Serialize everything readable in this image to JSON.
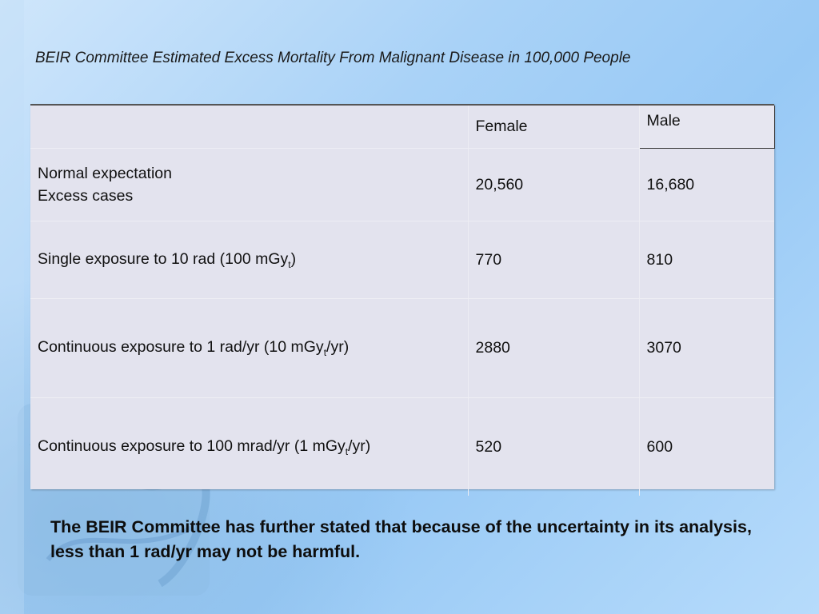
{
  "title": "BEIR Committee Estimated Excess Mortality From Malignant Disease in 100,000 People",
  "table": {
    "headers": {
      "blank": "",
      "female": "Female",
      "male": "Male"
    },
    "rows": [
      {
        "label_line1": "Normal expectation",
        "label_line2": "Excess cases",
        "female": "20,560",
        "male": "16,680"
      },
      {
        "label_pre": "Single exposure to 10 rad (100 mGy",
        "label_sub": "t",
        "label_post": ")",
        "female": "770",
        "male": "810"
      },
      {
        "label_pre": "Continuous exposure to 1 rad/yr (10 mGy",
        "label_sub": "t",
        "label_post": "/yr)",
        "female": "2880",
        "male": "3070"
      },
      {
        "label_pre": "Continuous exposure to 100 mrad/yr (1 mGy",
        "label_sub": "t",
        "label_post": "/yr)",
        "female": "520",
        "male": "600"
      }
    ]
  },
  "footnote": "The BEIR Committee has further stated that because of the uncertainty in its analysis, less than 1 rad/yr may not be harmful.",
  "colors": {
    "background": "#a9d2f7",
    "table_fill": "#e3e3ee",
    "text": "#111111"
  }
}
